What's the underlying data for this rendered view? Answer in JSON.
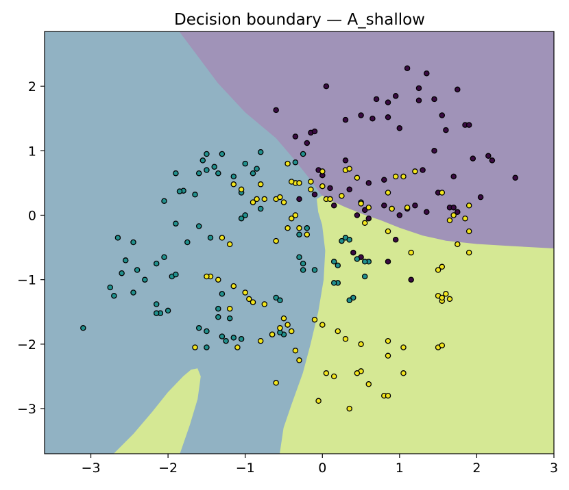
{
  "chart_data": {
    "type": "scatter",
    "title": "Decision boundary — A_shallow",
    "xlabel": "",
    "ylabel": "",
    "xlim": [
      -3.6,
      3.0
    ],
    "ylim": [
      -3.7,
      2.85
    ],
    "xticks": [
      -3,
      -2,
      -1,
      0,
      1,
      2,
      3
    ],
    "yticks": [
      -3,
      -2,
      -1,
      0,
      1,
      2
    ],
    "xtick_labels": [
      "−3",
      "−2",
      "−1",
      "0",
      "1",
      "2",
      "3"
    ],
    "ytick_labels": [
      "−3",
      "−2",
      "−1",
      "0",
      "1",
      "2"
    ],
    "grid": false,
    "legend": "none",
    "regions": [
      {
        "class": 0,
        "color": "#a093b8",
        "description": "upper right"
      },
      {
        "class": 1,
        "color": "#91b2c3",
        "description": "left"
      },
      {
        "class": 2,
        "color": "#d5e894",
        "description": "lower right and lower-left tongue"
      }
    ],
    "boundaries": {
      "region0_outline": [
        [
          -1.85,
          2.85
        ],
        [
          -1.6,
          2.45
        ],
        [
          -1.35,
          2.05
        ],
        [
          -1.0,
          1.6
        ],
        [
          -0.6,
          1.2
        ],
        [
          -0.35,
          0.85
        ],
        [
          -0.15,
          0.55
        ],
        [
          0.0,
          0.3
        ],
        [
          0.15,
          0.2
        ],
        [
          0.3,
          0.12
        ],
        [
          0.55,
          0.0
        ],
        [
          0.75,
          -0.08
        ],
        [
          1.0,
          -0.2
        ],
        [
          1.3,
          -0.32
        ],
        [
          1.6,
          -0.4
        ],
        [
          2.0,
          -0.45
        ],
        [
          2.4,
          -0.48
        ],
        [
          3.0,
          -0.52
        ],
        [
          3.0,
          2.85
        ]
      ],
      "region2_right_outline": [
        [
          0.0,
          0.3
        ],
        [
          0.15,
          0.2
        ],
        [
          0.3,
          0.12
        ],
        [
          0.55,
          0.0
        ],
        [
          0.75,
          -0.08
        ],
        [
          1.0,
          -0.2
        ],
        [
          1.3,
          -0.32
        ],
        [
          1.6,
          -0.4
        ],
        [
          2.0,
          -0.45
        ],
        [
          2.4,
          -0.48
        ],
        [
          3.0,
          -0.52
        ],
        [
          3.0,
          -3.7
        ],
        [
          -0.55,
          -3.7
        ],
        [
          -0.5,
          -3.3
        ],
        [
          -0.4,
          -2.95
        ],
        [
          -0.25,
          -2.45
        ],
        [
          -0.15,
          -2.0
        ],
        [
          -0.05,
          -1.5
        ],
        [
          0.02,
          -1.0
        ],
        [
          0.04,
          -0.55
        ],
        [
          0.0,
          -0.15
        ],
        [
          -0.05,
          0.05
        ],
        [
          -0.07,
          0.25
        ]
      ],
      "region2_tongue_outline": [
        [
          -2.7,
          -3.7
        ],
        [
          -2.45,
          -3.4
        ],
        [
          -2.2,
          -3.05
        ],
        [
          -2.0,
          -2.75
        ],
        [
          -1.8,
          -2.5
        ],
        [
          -1.7,
          -2.4
        ],
        [
          -1.62,
          -2.38
        ],
        [
          -1.58,
          -2.5
        ],
        [
          -1.62,
          -2.85
        ],
        [
          -1.72,
          -3.25
        ],
        [
          -1.85,
          -3.7
        ]
      ]
    },
    "series": [
      {
        "class": 0,
        "color": "#3a0a42",
        "x": [
          1.1,
          1.35,
          1.25,
          1.75,
          1.45,
          1.55,
          1.85,
          0.7,
          0.85,
          1.0,
          1.25,
          0.3,
          0.5,
          0.65,
          0.85,
          1.6,
          1.9,
          0.95,
          1.45,
          1.3,
          0.8,
          0.6,
          -0.35,
          -0.15,
          -0.2,
          -0.1,
          -0.05,
          1.95,
          2.15,
          2.2,
          1.7,
          0.3,
          0.35,
          0.0,
          0.1,
          0.45,
          0.55,
          0.9,
          1.2,
          1.5,
          1.65,
          1.75,
          2.05,
          2.5,
          0.6,
          0.8,
          1.0,
          1.1,
          1.35,
          1.7,
          0.95,
          0.4,
          0.5,
          0.15,
          -0.3,
          -0.1,
          0.85,
          1.15,
          -0.6,
          0.05
        ],
        "y": [
          2.28,
          2.2,
          1.97,
          1.95,
          1.8,
          1.55,
          1.4,
          1.8,
          1.75,
          1.35,
          1.78,
          1.48,
          1.55,
          1.5,
          1.52,
          1.32,
          1.4,
          1.85,
          1.0,
          0.7,
          0.55,
          0.5,
          1.22,
          1.28,
          1.12,
          1.3,
          0.7,
          0.88,
          0.92,
          0.85,
          0.6,
          0.85,
          0.4,
          0.62,
          0.42,
          0.0,
          0.08,
          0.1,
          0.15,
          0.35,
          0.12,
          0.05,
          0.28,
          0.58,
          -0.05,
          0.15,
          0.0,
          0.1,
          0.05,
          0.12,
          -0.38,
          -0.58,
          -0.65,
          0.15,
          0.25,
          0.32,
          -0.72,
          -1.0,
          1.63,
          2.0
        ]
      },
      {
        "class": 1,
        "color": "#21908d",
        "x": [
          -1.5,
          -1.4,
          -1.55,
          -1.3,
          -1.35,
          -1.6,
          -1.0,
          -0.85,
          -0.8,
          -0.9,
          -1.9,
          -1.8,
          -1.65,
          -1.5,
          -1.15,
          -1.05,
          -0.8,
          -1.85,
          -2.05,
          -1.9,
          -1.75,
          -1.6,
          -1.45,
          -1.05,
          -1.0,
          -2.65,
          -2.45,
          -2.55,
          -2.6,
          -2.75,
          -2.4,
          -2.3,
          -2.15,
          -2.05,
          -1.95,
          -1.9,
          -2.7,
          -2.45,
          -2.15,
          -2.1,
          -2.0,
          -2.15,
          -1.3,
          -1.5,
          -1.35,
          -1.3,
          -1.15,
          -1.25,
          -1.2,
          -1.05,
          -1.35,
          -1.5,
          -1.6,
          -0.6,
          -0.55,
          -0.5,
          -0.55,
          -0.65,
          -0.3,
          -0.25,
          -0.3,
          -0.2,
          -0.25,
          -0.1,
          0.15,
          0.2,
          0.2,
          0.4,
          0.55,
          0.6,
          0.3,
          0.35,
          0.45,
          0.55,
          0.15,
          0.25,
          0.35,
          0.5,
          -3.1,
          -0.25,
          -0.35
        ],
        "y": [
          0.95,
          0.75,
          0.85,
          0.95,
          0.65,
          0.65,
          0.8,
          0.72,
          0.98,
          0.65,
          0.65,
          0.38,
          0.32,
          0.7,
          0.6,
          0.35,
          0.1,
          0.37,
          0.22,
          -0.13,
          -0.42,
          -0.17,
          -0.35,
          -0.05,
          0.0,
          -0.35,
          -0.42,
          -0.7,
          -0.9,
          -1.12,
          -0.85,
          -1.0,
          -0.75,
          -0.65,
          -0.95,
          -0.92,
          -1.25,
          -1.2,
          -1.38,
          -1.52,
          -1.48,
          -1.52,
          -1.22,
          -1.8,
          -1.58,
          -1.88,
          -1.9,
          -1.95,
          -1.6,
          -1.92,
          -1.45,
          -2.05,
          -1.75,
          -1.28,
          -1.32,
          -1.85,
          -1.82,
          -1.85,
          -0.65,
          -0.85,
          -0.3,
          -0.2,
          -0.75,
          -0.85,
          -0.72,
          -0.78,
          -1.05,
          -1.28,
          -0.95,
          -0.72,
          -0.35,
          -0.38,
          -0.68,
          -0.72,
          -1.05,
          -0.4,
          -1.32,
          0.2,
          -1.75,
          0.95,
          0.82
        ],
        "note_colors": "teal points"
      },
      {
        "class": 2,
        "color": "#f2e51d",
        "x": [
          -1.15,
          -1.05,
          -0.9,
          -0.85,
          -0.8,
          -0.75,
          -0.6,
          -0.45,
          -0.35,
          -0.3,
          -0.4,
          -0.15,
          0.0,
          0.05,
          0.3,
          0.35,
          0.45,
          1.05,
          1.2,
          0.95,
          0.85,
          1.55,
          1.7,
          1.85,
          1.9,
          1.75,
          1.65,
          1.9,
          -0.6,
          -0.55,
          -0.5,
          -0.45,
          -0.4,
          -0.35,
          -0.3,
          -0.2,
          -0.15,
          0.0,
          0.1,
          0.25,
          0.5,
          0.55,
          0.6,
          0.85,
          0.9,
          1.1,
          1.15,
          1.5,
          1.55,
          1.6,
          1.65,
          1.55,
          1.5,
          1.55,
          1.9,
          -0.1,
          0.0,
          0.2,
          0.3,
          0.5,
          0.85,
          -1.3,
          -1.2,
          -1.45,
          -1.5,
          -1.35,
          -0.95,
          -1.2,
          -1.15,
          -0.9,
          -0.75,
          -1.0,
          -1.65,
          -1.1,
          -0.5,
          -0.55,
          -0.45,
          -0.35,
          -0.3,
          -0.4,
          -0.65,
          -0.8,
          -0.6,
          0.35,
          0.15,
          0.5,
          0.6,
          0.8,
          0.05,
          -0.05,
          0.45,
          0.85,
          1.05,
          1.5,
          1.55,
          1.05,
          0.85
        ],
        "y": [
          0.48,
          0.4,
          0.2,
          0.25,
          0.48,
          0.25,
          -0.4,
          0.8,
          0.5,
          0.5,
          0.52,
          0.52,
          0.68,
          0.25,
          0.7,
          0.72,
          0.58,
          0.6,
          0.68,
          0.6,
          0.35,
          0.35,
          0.0,
          -0.05,
          -0.25,
          -0.45,
          -0.08,
          0.15,
          0.25,
          0.28,
          0.2,
          -0.2,
          -0.05,
          0.0,
          -0.2,
          -0.3,
          0.4,
          0.45,
          0.25,
          0.3,
          0.18,
          -0.12,
          0.12,
          -0.25,
          0.1,
          0.12,
          -0.58,
          -0.85,
          -0.8,
          -1.22,
          -1.3,
          -1.33,
          -1.25,
          -1.28,
          -0.58,
          -1.62,
          -1.7,
          -1.8,
          -1.92,
          -2.0,
          -1.95,
          -0.35,
          -0.45,
          -0.95,
          -0.95,
          -1.0,
          -1.3,
          -1.45,
          -1.1,
          -1.35,
          -1.38,
          -1.2,
          -2.05,
          -2.05,
          -1.6,
          -1.75,
          -1.7,
          -2.1,
          -2.25,
          -1.8,
          -1.85,
          -1.95,
          -2.6,
          -3.0,
          -2.5,
          -2.42,
          -2.62,
          -2.8,
          -2.45,
          -2.88,
          -2.45,
          -2.18,
          -2.05,
          -2.05,
          -2.02,
          -2.45,
          -2.8
        ]
      }
    ]
  }
}
